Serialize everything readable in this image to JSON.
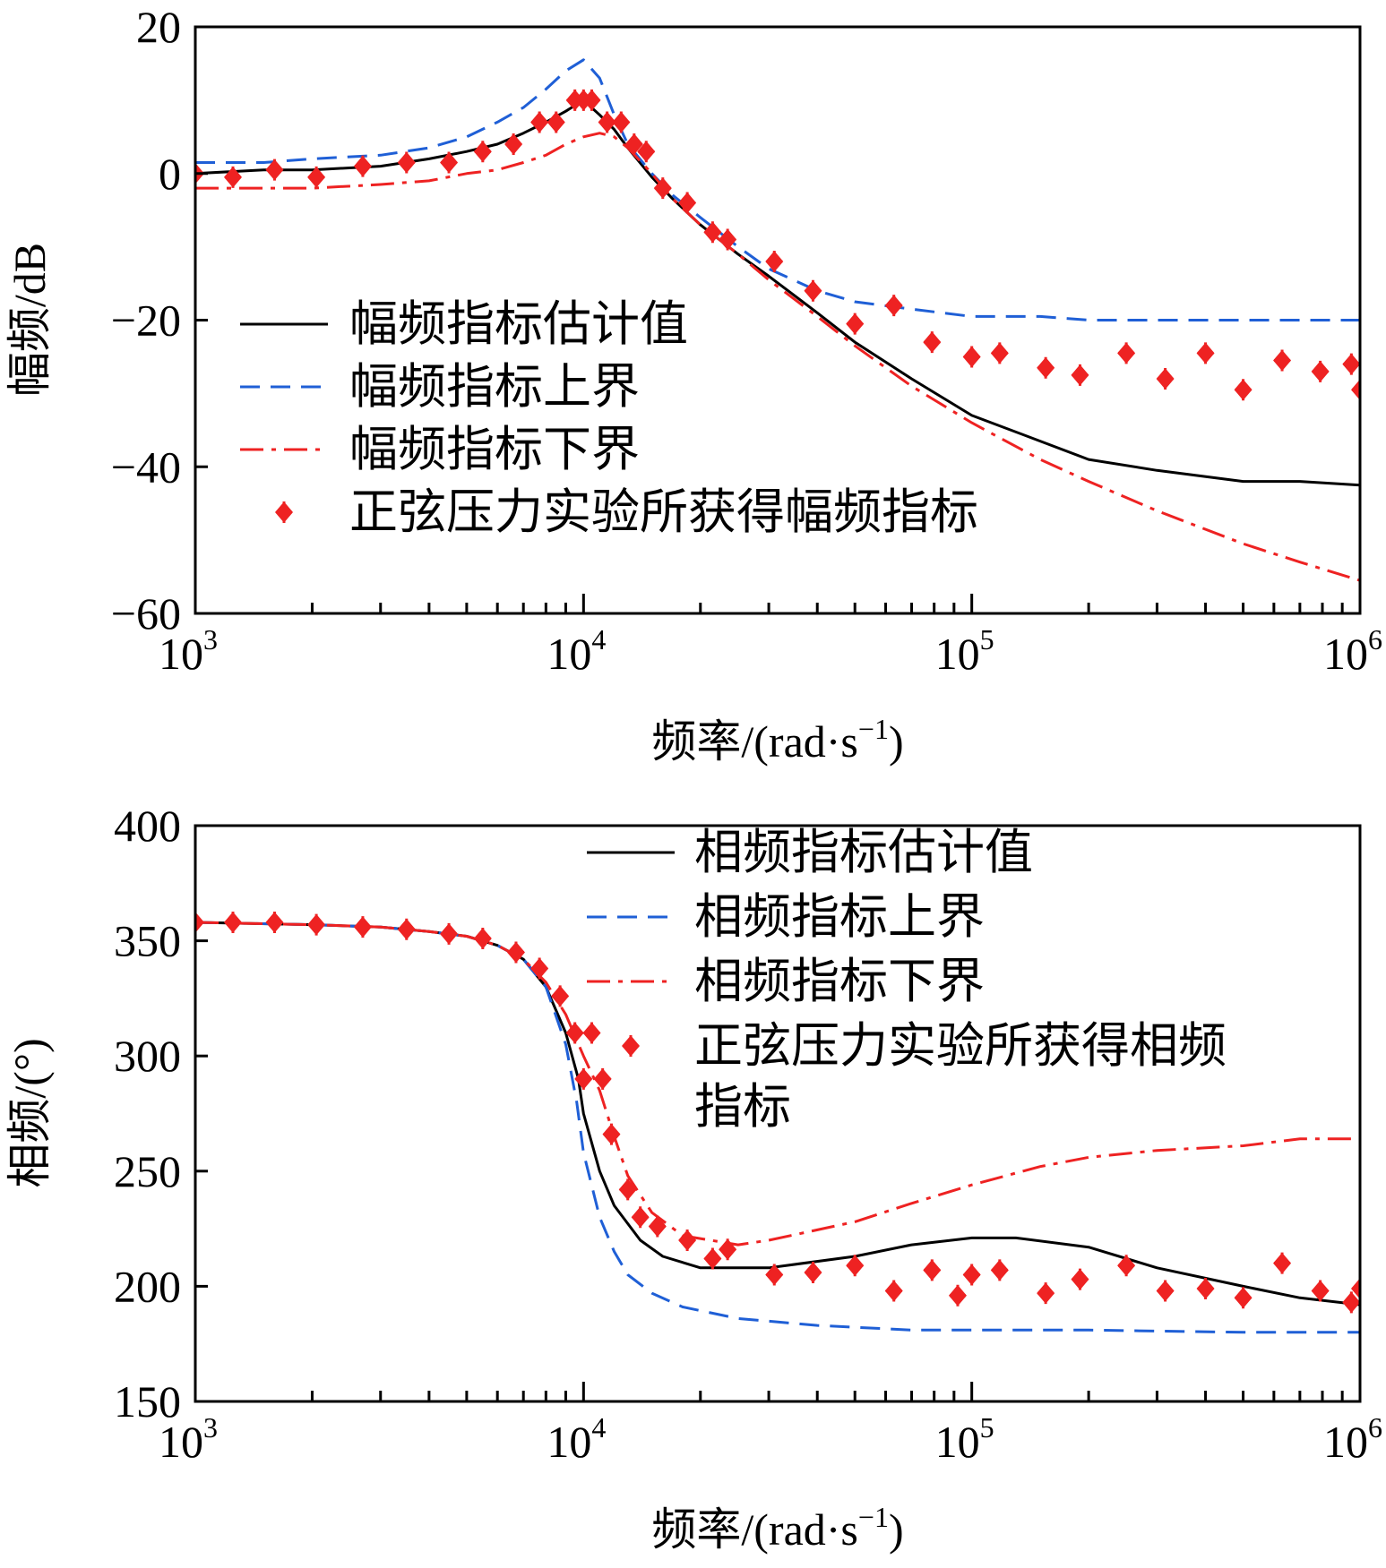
{
  "chart_data": [
    {
      "type": "line",
      "panel": "top",
      "x_scale": "log",
      "xlim": [
        1000,
        1000000
      ],
      "ylim": [
        -60,
        20
      ],
      "yticks": [
        20,
        0,
        -20,
        -40,
        -60
      ],
      "ytick_labels": [
        "20",
        "0",
        "−20",
        "−40",
        "−60"
      ],
      "xticks": [
        1000,
        10000,
        100000,
        1000000
      ],
      "xtick_labels": [
        {
          "base": "10",
          "exp": "3"
        },
        {
          "base": "10",
          "exp": "4"
        },
        {
          "base": "10",
          "exp": "5"
        },
        {
          "base": "10",
          "exp": "6"
        }
      ],
      "xlabel": {
        "text": "频率/(rad·s",
        "sup": "−1",
        "tail": ")"
      },
      "ylabel": "幅频/dB",
      "legend_position": "middle-left",
      "series": [
        {
          "name": "幅频指标估计值",
          "style": "solid",
          "color": "#000000",
          "x": [
            1000,
            1500,
            2000,
            3000,
            4000,
            5000,
            6000,
            7000,
            8000,
            9000,
            10000,
            11000,
            12000,
            13000,
            15000,
            17000,
            20000,
            25000,
            30000,
            40000,
            50000,
            70000,
            100000,
            150000,
            200000,
            300000,
            500000,
            700000,
            1000000
          ],
          "y": [
            0,
            0.5,
            0.5,
            1,
            2,
            3,
            4,
            5.5,
            7,
            8.5,
            10,
            8,
            6,
            3.5,
            -0.5,
            -3.5,
            -7,
            -11,
            -14,
            -19,
            -23,
            -28,
            -33,
            -36.5,
            -39,
            -40.5,
            -42,
            -42,
            -42.5
          ]
        },
        {
          "name": "幅频指标上界",
          "style": "dashed",
          "color": "#1f5fd6",
          "x": [
            1000,
            1500,
            2000,
            3000,
            4000,
            5000,
            6000,
            7000,
            8000,
            9000,
            10000,
            11000,
            12000,
            13000,
            15000,
            17000,
            20000,
            25000,
            30000,
            40000,
            50000,
            70000,
            100000,
            150000,
            200000,
            300000,
            500000,
            1000000
          ],
          "y": [
            1.5,
            1.5,
            2,
            2.5,
            3.5,
            5,
            7,
            9,
            11.5,
            14,
            15.5,
            13,
            8,
            4,
            0,
            -3,
            -6,
            -10,
            -13,
            -16,
            -17.5,
            -18.5,
            -19.5,
            -19.5,
            -20,
            -20,
            -20,
            -20
          ]
        },
        {
          "name": "幅频指标下界",
          "style": "dashdot",
          "color": "#ee2222",
          "x": [
            1000,
            1500,
            2000,
            3000,
            4000,
            5000,
            6000,
            7000,
            8000,
            9000,
            10000,
            11000,
            12000,
            13000,
            15000,
            17000,
            20000,
            25000,
            30000,
            40000,
            50000,
            70000,
            100000,
            150000,
            200000,
            300000,
            500000,
            700000,
            1000000
          ],
          "y": [
            -2,
            -2,
            -2,
            -1.5,
            -1,
            0,
            0.5,
            1.5,
            2.5,
            4,
            5,
            5.5,
            5,
            3.5,
            0,
            -3.5,
            -7,
            -11,
            -14.5,
            -19.5,
            -23.5,
            -29,
            -34,
            -39,
            -42,
            -46,
            -50.5,
            -53,
            -55.5
          ]
        },
        {
          "name": "正弦压力实验所获得幅频指标",
          "style": "markers",
          "color": "#ee2222",
          "x": [
            1000,
            1250,
            1600,
            2050,
            2700,
            3500,
            4500,
            5500,
            6600,
            7700,
            8500,
            9500,
            10000,
            10500,
            11500,
            12500,
            13500,
            14500,
            16000,
            18500,
            21500,
            23500,
            31000,
            39000,
            50000,
            63000,
            79000,
            100000,
            118000,
            155000,
            190000,
            250000,
            315000,
            400000,
            500000,
            630000,
            790000,
            950000,
            1000000
          ],
          "y": [
            0,
            -0.5,
            0.5,
            -0.5,
            1,
            1.5,
            1.5,
            3,
            4,
            7,
            7,
            10,
            10,
            10,
            7,
            7,
            4,
            3,
            -2,
            -4,
            -8,
            -9,
            -12,
            -16,
            -20.5,
            -18,
            -23,
            -25,
            -24.5,
            -26.5,
            -27.5,
            -24.5,
            -28,
            -24.5,
            -29.5,
            -25.5,
            -27,
            -26,
            -29.5
          ]
        }
      ]
    },
    {
      "type": "line",
      "panel": "bottom",
      "x_scale": "log",
      "xlim": [
        1000,
        1000000
      ],
      "ylim": [
        150,
        400
      ],
      "yticks": [
        400,
        350,
        300,
        250,
        200,
        150
      ],
      "ytick_labels": [
        "400",
        "350",
        "300",
        "250",
        "200",
        "150"
      ],
      "xticks": [
        1000,
        10000,
        100000,
        1000000
      ],
      "xtick_labels": [
        {
          "base": "10",
          "exp": "3"
        },
        {
          "base": "10",
          "exp": "4"
        },
        {
          "base": "10",
          "exp": "5"
        },
        {
          "base": "10",
          "exp": "6"
        }
      ],
      "xlabel": {
        "text": "频率/(rad·s",
        "sup": "−1",
        "tail": ")"
      },
      "ylabel": "相频/(°)",
      "legend_position": "top-right",
      "series": [
        {
          "name": "相频指标估计值",
          "style": "solid",
          "color": "#000000",
          "x": [
            1000,
            2000,
            3000,
            4000,
            5000,
            6000,
            7000,
            8000,
            9000,
            9700,
            10000,
            11000,
            12000,
            14000,
            16000,
            20000,
            30000,
            50000,
            70000,
            100000,
            130000,
            200000,
            300000,
            500000,
            700000,
            1000000
          ],
          "y": [
            358,
            357,
            356,
            354,
            352,
            348,
            342,
            330,
            310,
            290,
            275,
            250,
            235,
            220,
            213,
            208,
            208,
            213,
            218,
            221,
            221,
            217,
            208,
            200,
            195,
            192
          ]
        },
        {
          "name": "相频指标上界",
          "style": "dashed",
          "color": "#1f5fd6",
          "x": [
            1000,
            2000,
            3000,
            4000,
            5000,
            6000,
            7000,
            8000,
            9000,
            9600,
            10000,
            11000,
            12000,
            13000,
            15000,
            18000,
            25000,
            40000,
            70000,
            100000,
            200000,
            500000,
            1000000
          ],
          "y": [
            358,
            357,
            356,
            354,
            352,
            348,
            342,
            330,
            305,
            280,
            258,
            230,
            215,
            205,
            197,
            191,
            186,
            183,
            181,
            181,
            181,
            180,
            180
          ]
        },
        {
          "name": "相频指标下界",
          "style": "dashdot",
          "color": "#ee2222",
          "x": [
            1000,
            2000,
            3000,
            4000,
            5000,
            6000,
            7000,
            8000,
            9000,
            10000,
            11000,
            12000,
            13000,
            15000,
            18000,
            25000,
            30000,
            50000,
            70000,
            100000,
            150000,
            200000,
            300000,
            500000,
            700000,
            1000000
          ],
          "y": [
            358,
            357,
            356,
            354,
            352,
            348,
            342,
            332,
            318,
            300,
            285,
            265,
            248,
            232,
            222,
            218,
            220,
            228,
            236,
            244,
            252,
            256,
            259,
            261,
            264,
            264
          ]
        },
        {
          "name": "正弦压力实验所获得相频指标",
          "style": "markers",
          "color": "#ee2222",
          "x": [
            1000,
            1250,
            1600,
            2050,
            2700,
            3500,
            4500,
            5500,
            6700,
            7700,
            8700,
            9500,
            10000,
            10500,
            11200,
            11800,
            13000,
            14000,
            15500,
            18500,
            21500,
            23500,
            31000,
            39000,
            50000,
            63000,
            79000,
            92000,
            100000,
            118000,
            155000,
            190000,
            250000,
            315000,
            400000,
            500000,
            630000,
            790000,
            950000,
            1000000
          ],
          "y": [
            358,
            358,
            358,
            357,
            356,
            355,
            353,
            351,
            345,
            338,
            326,
            310,
            290,
            310,
            290,
            266,
            242,
            230,
            226,
            220,
            212,
            216,
            205,
            206,
            209,
            198,
            207,
            196,
            205,
            207,
            197,
            203,
            209,
            198,
            199,
            195,
            210,
            198,
            193,
            199
          ]
        }
      ]
    }
  ]
}
